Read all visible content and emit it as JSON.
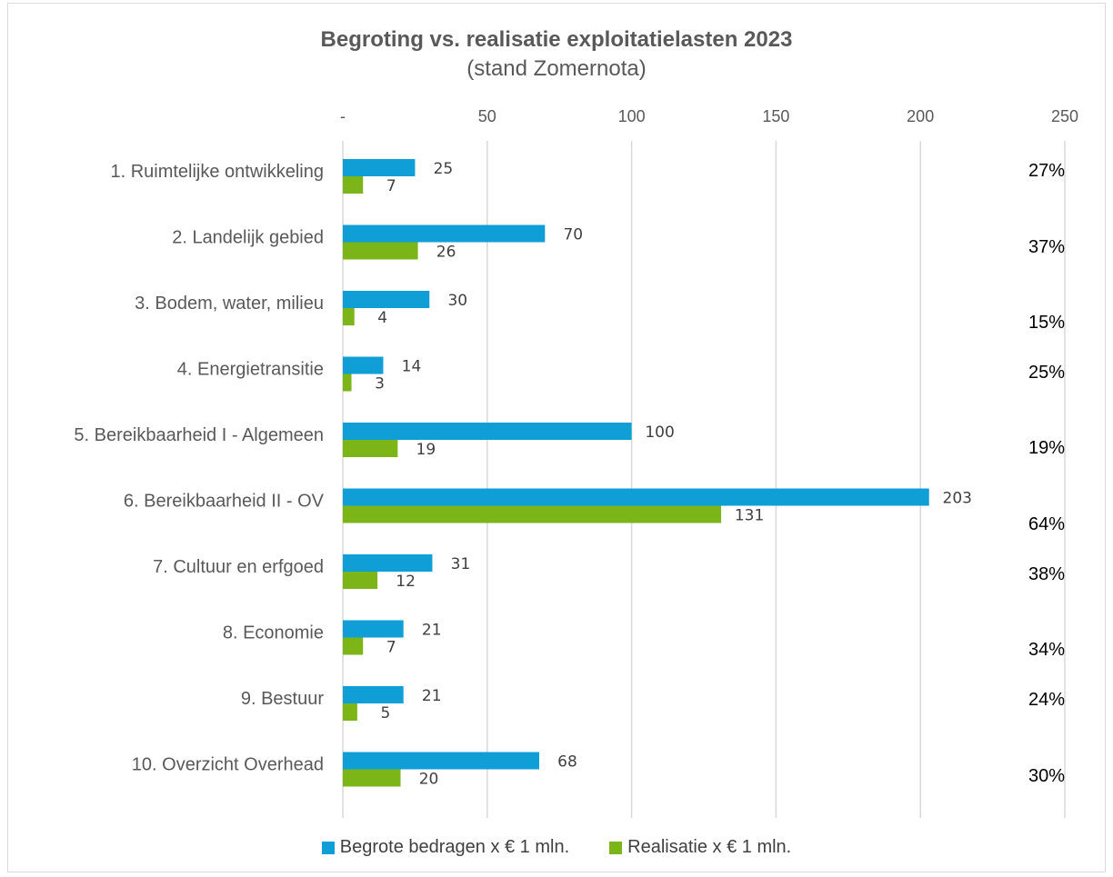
{
  "chart_data": {
    "type": "bar",
    "orientation": "horizontal",
    "title": "Begroting vs. realisatie exploitatielasten 2023",
    "subtitle": "(stand Zomernota)",
    "categories": [
      "1. Ruimtelijke ontwikkeling",
      "2. Landelijk gebied",
      "3. Bodem, water, milieu",
      "4. Energietransitie",
      "5. Bereikbaarheid I - Algemeen",
      "6. Bereikbaarheid II - OV",
      "7. Cultuur en erfgoed",
      "8. Economie",
      "9. Bestuur",
      "10. Overzicht Overhead"
    ],
    "series": [
      {
        "name": "Begrote bedragen x € 1 mln.",
        "values": [
          25,
          70,
          30,
          14,
          100,
          203,
          31,
          21,
          21,
          68
        ],
        "color": "#0f9ed5"
      },
      {
        "name": "Realisatie x € 1 mln.",
        "values": [
          7,
          26,
          4,
          3,
          19,
          131,
          12,
          7,
          5,
          20
        ],
        "color": "#7cb518"
      }
    ],
    "percentages": [
      "27%",
      "37%",
      "15%",
      "25%",
      "19%",
      "64%",
      "38%",
      "34%",
      "24%",
      "30%"
    ],
    "xticks": [
      "-",
      "50",
      "100",
      "150",
      "200",
      "250"
    ],
    "xlim": [
      0,
      250
    ],
    "xaxis_position": "top",
    "grid": true,
    "legend_position": "bottom"
  }
}
